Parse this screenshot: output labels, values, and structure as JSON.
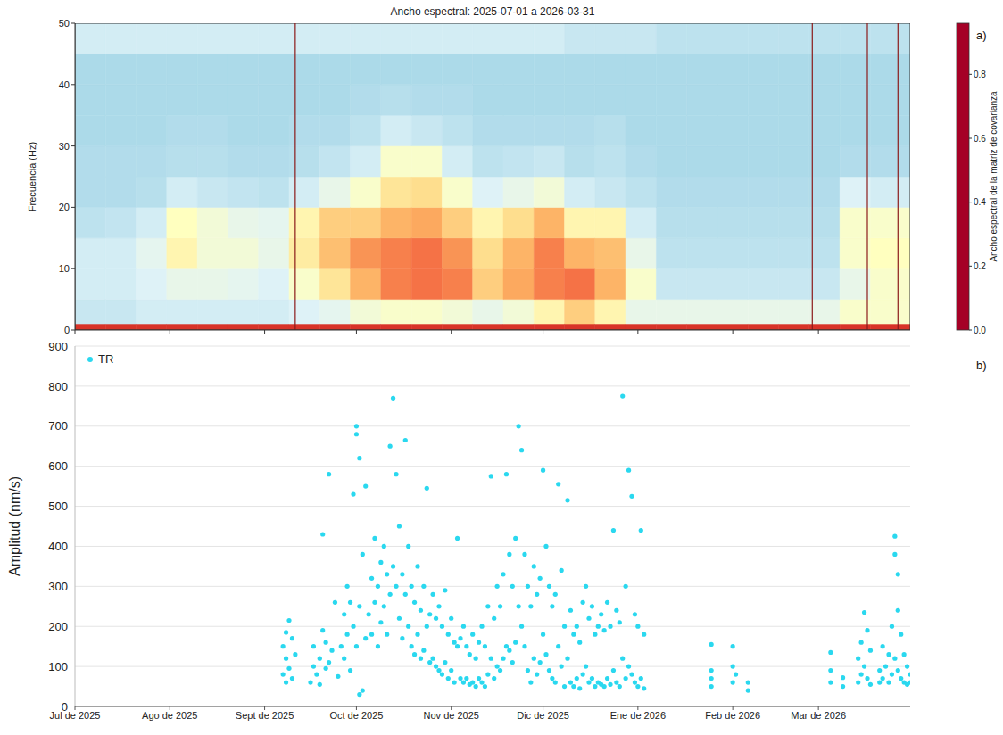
{
  "chart_data": [
    {
      "type": "heatmap",
      "panel": "a)",
      "title": "Ancho espectral: 2025-07-01 a 2026-03-31",
      "y_label": "Frecuencia (Hz)",
      "x_edges": [
        0,
        10,
        20,
        30,
        40,
        50,
        60,
        70,
        80,
        90,
        100,
        110,
        120,
        130,
        140,
        150,
        160,
        170,
        180,
        190,
        200,
        210,
        220,
        230,
        240,
        250,
        260,
        273
      ],
      "y_edges": [
        0,
        1,
        5,
        10,
        15,
        20,
        25,
        30,
        35,
        40,
        45,
        50
      ],
      "cells": [
        [
          0.1,
          0.62,
          0.6,
          0.6,
          0.64,
          0.66,
          0.66,
          0.67,
          0.67,
          0.67,
          0.6
        ],
        [
          0.1,
          0.62,
          0.6,
          0.6,
          0.63,
          0.66,
          0.66,
          0.67,
          0.67,
          0.67,
          0.6
        ],
        [
          0.1,
          0.6,
          0.58,
          0.56,
          0.6,
          0.65,
          0.66,
          0.67,
          0.67,
          0.67,
          0.6
        ],
        [
          0.1,
          0.6,
          0.55,
          0.45,
          0.48,
          0.6,
          0.65,
          0.66,
          0.67,
          0.67,
          0.6
        ],
        [
          0.1,
          0.6,
          0.55,
          0.52,
          0.52,
          0.62,
          0.65,
          0.66,
          0.67,
          0.67,
          0.6
        ],
        [
          0.1,
          0.6,
          0.56,
          0.52,
          0.55,
          0.63,
          0.66,
          0.67,
          0.67,
          0.67,
          0.6
        ],
        [
          0.1,
          0.6,
          0.58,
          0.55,
          0.56,
          0.64,
          0.66,
          0.67,
          0.67,
          0.67,
          0.6
        ],
        [
          0.1,
          0.58,
          0.5,
          0.42,
          0.45,
          0.6,
          0.65,
          0.66,
          0.67,
          0.67,
          0.6
        ],
        [
          0.1,
          0.56,
          0.4,
          0.32,
          0.35,
          0.55,
          0.63,
          0.66,
          0.67,
          0.67,
          0.6
        ],
        [
          0.1,
          0.52,
          0.3,
          0.25,
          0.35,
          0.5,
          0.6,
          0.64,
          0.66,
          0.67,
          0.6
        ],
        [
          0.1,
          0.5,
          0.22,
          0.22,
          0.3,
          0.4,
          0.5,
          0.6,
          0.65,
          0.67,
          0.6
        ],
        [
          0.1,
          0.5,
          0.2,
          0.2,
          0.28,
          0.38,
          0.5,
          0.62,
          0.66,
          0.67,
          0.6
        ],
        [
          0.1,
          0.52,
          0.22,
          0.25,
          0.35,
          0.5,
          0.6,
          0.64,
          0.66,
          0.67,
          0.6
        ],
        [
          0.1,
          0.55,
          0.35,
          0.38,
          0.45,
          0.58,
          0.64,
          0.66,
          0.67,
          0.67,
          0.6
        ],
        [
          0.1,
          0.52,
          0.28,
          0.3,
          0.38,
          0.55,
          0.63,
          0.66,
          0.67,
          0.67,
          0.6
        ],
        [
          0.1,
          0.45,
          0.22,
          0.22,
          0.3,
          0.52,
          0.62,
          0.66,
          0.67,
          0.67,
          0.6
        ],
        [
          0.1,
          0.35,
          0.2,
          0.3,
          0.45,
          0.6,
          0.65,
          0.66,
          0.67,
          0.67,
          0.62
        ],
        [
          0.1,
          0.45,
          0.3,
          0.32,
          0.45,
          0.62,
          0.64,
          0.65,
          0.67,
          0.67,
          0.62
        ],
        [
          0.1,
          0.55,
          0.5,
          0.55,
          0.6,
          0.64,
          0.66,
          0.67,
          0.67,
          0.67,
          0.62
        ],
        [
          0.1,
          0.55,
          0.62,
          0.64,
          0.65,
          0.66,
          0.67,
          0.67,
          0.67,
          0.67,
          0.64
        ],
        [
          0.1,
          0.55,
          0.62,
          0.64,
          0.65,
          0.66,
          0.67,
          0.67,
          0.67,
          0.67,
          0.64
        ],
        [
          0.1,
          0.55,
          0.62,
          0.64,
          0.65,
          0.66,
          0.67,
          0.67,
          0.67,
          0.67,
          0.64
        ],
        [
          0.1,
          0.55,
          0.62,
          0.64,
          0.65,
          0.66,
          0.67,
          0.67,
          0.67,
          0.67,
          0.64
        ],
        [
          0.1,
          0.55,
          0.62,
          0.64,
          0.65,
          0.66,
          0.67,
          0.67,
          0.67,
          0.67,
          0.64
        ],
        [
          0.1,
          0.55,
          0.62,
          0.64,
          0.65,
          0.66,
          0.67,
          0.67,
          0.67,
          0.67,
          0.64
        ],
        [
          0.1,
          0.5,
          0.55,
          0.5,
          0.5,
          0.58,
          0.66,
          0.67,
          0.67,
          0.67,
          0.64
        ],
        [
          0.1,
          0.5,
          0.5,
          0.48,
          0.5,
          0.6,
          0.66,
          0.67,
          0.67,
          0.67,
          0.64
        ]
      ],
      "xlim": [
        0,
        273
      ],
      "xticks": [
        0,
        31,
        62,
        92,
        123,
        153,
        184,
        215,
        243
      ],
      "ylim": [
        0,
        50
      ],
      "yticks": [
        0,
        10,
        20,
        30,
        40,
        50
      ],
      "tick_labels": "y",
      "lines_x": [
        72,
        241,
        259,
        269
      ],
      "lines_color": "#8b1a1a",
      "colorbar": {
        "label": "Ancho espectral de la matriz de covarianza",
        "range": [
          0,
          0.96
        ],
        "ticks": [
          {
            "value": 0,
            "label": "0.0"
          },
          {
            "value": 0.2,
            "label": "0.2"
          },
          {
            "value": 0.4,
            "label": "0.4"
          },
          {
            "value": 0.6,
            "label": "0.6"
          },
          {
            "value": 0.8,
            "label": "0.8"
          }
        ]
      }
    },
    {
      "type": "scatter",
      "panel": "b)",
      "y_label": "Amplitud (nm/s)",
      "legend": "upper left",
      "grid": true,
      "xlim": [
        0,
        273
      ],
      "xticks": [
        {
          "value": 0,
          "label": "Jul de 2025"
        },
        {
          "value": 31,
          "label": "Ago de 2025"
        },
        {
          "value": 62,
          "label": "Sept de 2025"
        },
        {
          "value": 92,
          "label": "Oct de 2025"
        },
        {
          "value": 123,
          "label": "Nov de 2025"
        },
        {
          "value": 153,
          "label": "Dic de 2025"
        },
        {
          "value": 184,
          "label": "Ene de 2026"
        },
        {
          "value": 215,
          "label": "Feb de 2026"
        },
        {
          "value": 243,
          "label": "Mar de 2026"
        }
      ],
      "ylim": [
        0,
        900
      ],
      "yticks": [
        0,
        100,
        200,
        300,
        400,
        500,
        600,
        700,
        800,
        900
      ],
      "series": [
        {
          "name": "TR",
          "color": "#2ad8ef",
          "marker": "circle",
          "x": [
            68,
            68,
            69,
            69,
            69,
            70,
            70,
            71,
            71,
            72,
            77,
            78,
            78,
            79,
            80,
            80,
            81,
            81,
            82,
            82,
            83,
            83,
            84,
            85,
            86,
            87,
            88,
            88,
            89,
            89,
            90,
            90,
            91,
            91,
            92,
            92,
            92,
            93,
            93,
            93,
            94,
            94,
            95,
            95,
            96,
            97,
            97,
            98,
            98,
            99,
            99,
            100,
            100,
            101,
            101,
            102,
            102,
            103,
            103,
            104,
            104,
            105,
            105,
            106,
            106,
            107,
            107,
            108,
            108,
            109,
            109,
            110,
            110,
            111,
            111,
            112,
            112,
            113,
            113,
            114,
            114,
            115,
            115,
            116,
            116,
            117,
            117,
            118,
            118,
            119,
            119,
            120,
            120,
            121,
            121,
            122,
            122,
            123,
            123,
            124,
            124,
            125,
            125,
            126,
            126,
            127,
            127,
            128,
            128,
            129,
            129,
            130,
            130,
            131,
            131,
            132,
            132,
            133,
            133,
            134,
            134,
            135,
            135,
            136,
            136,
            137,
            137,
            138,
            138,
            139,
            139,
            140,
            140,
            141,
            141,
            142,
            142,
            143,
            143,
            144,
            144,
            145,
            145,
            146,
            146,
            147,
            147,
            148,
            148,
            149,
            149,
            150,
            150,
            151,
            151,
            152,
            152,
            153,
            153,
            154,
            154,
            155,
            155,
            156,
            156,
            157,
            157,
            158,
            158,
            159,
            159,
            160,
            160,
            161,
            161,
            162,
            162,
            163,
            163,
            164,
            164,
            165,
            165,
            166,
            166,
            167,
            167,
            168,
            168,
            169,
            169,
            170,
            170,
            171,
            171,
            172,
            172,
            173,
            173,
            174,
            174,
            175,
            175,
            176,
            176,
            177,
            177,
            178,
            178,
            179,
            179,
            180,
            180,
            181,
            181,
            182,
            182,
            183,
            183,
            184,
            184,
            185,
            185,
            186,
            186,
            208,
            208,
            208,
            208,
            215,
            215,
            215,
            216,
            220,
            220,
            247,
            247,
            247,
            251,
            251,
            256,
            256,
            257,
            257,
            258,
            258,
            259,
            259,
            260,
            260,
            263,
            263,
            264,
            264,
            265,
            266,
            266,
            267,
            267,
            268,
            268,
            268,
            269,
            269,
            269,
            270,
            270,
            271,
            271,
            272,
            272,
            273,
            273
          ],
          "values": [
            80,
            150,
            60,
            120,
            185,
            95,
            215,
            70,
            170,
            130,
            60,
            100,
            150,
            80,
            55,
            120,
            190,
            430,
            95,
            160,
            580,
            110,
            140,
            260,
            75,
            150,
            230,
            120,
            300,
            180,
            90,
            260,
            530,
            200,
            700,
            680,
            150,
            30,
            620,
            250,
            40,
            380,
            170,
            550,
            230,
            320,
            180,
            420,
            260,
            300,
            150,
            360,
            210,
            400,
            250,
            330,
            180,
            650,
            280,
            770,
            350,
            580,
            300,
            450,
            220,
            330,
            170,
            665,
            280,
            400,
            200,
            300,
            150,
            260,
            130,
            350,
            180,
            240,
            120,
            300,
            140,
            545,
            200,
            230,
            110,
            280,
            120,
            220,
            100,
            250,
            90,
            200,
            80,
            290,
            110,
            180,
            70,
            220,
            90,
            160,
            60,
            420,
            150,
            170,
            70,
            200,
            60,
            150,
            70,
            130,
            55,
            180,
            60,
            120,
            50,
            160,
            70,
            200,
            60,
            150,
            50,
            250,
            80,
            575,
            120,
            220,
            70,
            300,
            100,
            250,
            90,
            330,
            120,
            580,
            150,
            380,
            140,
            300,
            110,
            420,
            160,
            700,
            250,
            640,
            200,
            380,
            150,
            300,
            90,
            250,
            60,
            350,
            120,
            280,
            80,
            320,
            110,
            590,
            180,
            400,
            130,
            300,
            90,
            250,
            70,
            280,
            60,
            555,
            150,
            340,
            100,
            200,
            50,
            515,
            120,
            240,
            60,
            180,
            50,
            200,
            70,
            160,
            45,
            260,
            80,
            300,
            100,
            220,
            60,
            250,
            70,
            180,
            50,
            200,
            60,
            230,
            55,
            190,
            50,
            260,
            70,
            200,
            55,
            440,
            90,
            240,
            60,
            210,
            50,
            775,
            120,
            300,
            70,
            590,
            100,
            525,
            80,
            230,
            60,
            200,
            50,
            440,
            70,
            180,
            45,
            50,
            90,
            155,
            70,
            60,
            100,
            150,
            80,
            40,
            60,
            60,
            135,
            90,
            50,
            72,
            60,
            120,
            160,
            80,
            235,
            100,
            190,
            70,
            140,
            55,
            90,
            60,
            150,
            70,
            100,
            60,
            130,
            200,
            80,
            380,
            120,
            425,
            330,
            240,
            90,
            180,
            70,
            130,
            60,
            100,
            55,
            80,
            60
          ]
        }
      ]
    }
  ]
}
